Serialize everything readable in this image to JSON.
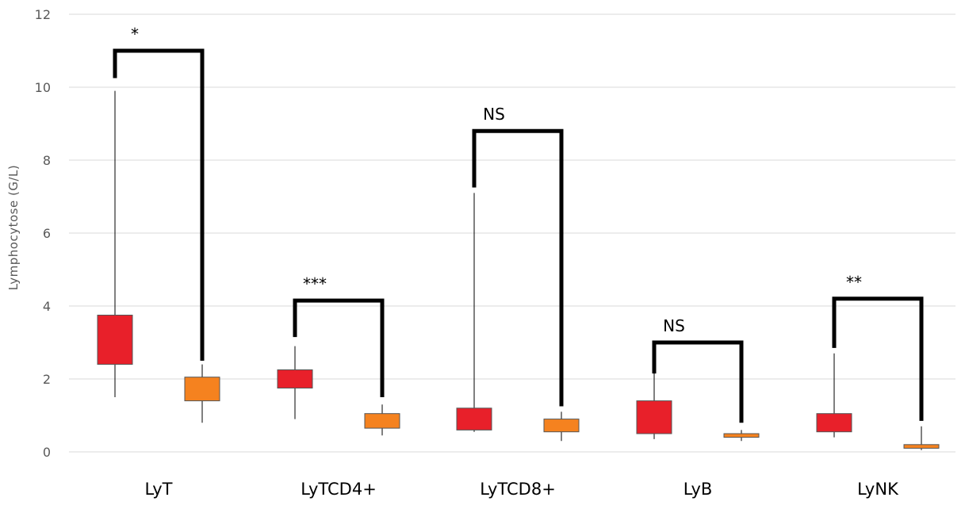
{
  "chart_data": {
    "type": "box",
    "ylabel": "Lymphocytose (G/L)",
    "xlabel": "",
    "ylim": [
      0,
      12
    ],
    "yticks": [
      0,
      2,
      4,
      6,
      8,
      10,
      12
    ],
    "grid": true,
    "colors": {
      "series_a": "#e8202a",
      "series_b": "#f5821f",
      "grid": "#d9d9d9",
      "bracket": "#000000"
    },
    "categories": [
      "LyT",
      "LyTCD4+",
      "LyTCD8+",
      "LyB",
      "LyNK"
    ],
    "series": [
      {
        "color": "#e8202a",
        "boxes": [
          {
            "min": 1.5,
            "q1": 2.4,
            "q3": 3.75,
            "max": 9.9
          },
          {
            "min": 0.9,
            "q1": 1.75,
            "q3": 2.25,
            "max": 2.9
          },
          {
            "min": 0.55,
            "q1": 0.6,
            "q3": 1.2,
            "max": 7.1
          },
          {
            "min": 0.35,
            "q1": 0.5,
            "q3": 1.4,
            "max": 2.25
          },
          {
            "min": 0.4,
            "q1": 0.55,
            "q3": 1.05,
            "max": 2.7
          }
        ]
      },
      {
        "color": "#f5821f",
        "boxes": [
          {
            "min": 0.8,
            "q1": 1.4,
            "q3": 2.05,
            "max": 2.4
          },
          {
            "min": 0.45,
            "q1": 0.65,
            "q3": 1.05,
            "max": 1.3
          },
          {
            "min": 0.3,
            "q1": 0.55,
            "q3": 0.9,
            "max": 1.1
          },
          {
            "min": 0.3,
            "q1": 0.4,
            "q3": 0.5,
            "max": 0.6
          },
          {
            "min": 0.05,
            "q1": 0.1,
            "q3": 0.2,
            "max": 0.7
          }
        ]
      }
    ],
    "comparisons": [
      {
        "category": "LyT",
        "label": "*",
        "top": 11.0,
        "left_end": 10.25,
        "right_end": 2.5
      },
      {
        "category": "LyTCD4+",
        "label": "***",
        "top": 4.15,
        "left_end": 3.15,
        "right_end": 1.5
      },
      {
        "category": "LyTCD8+",
        "label": "NS",
        "top": 8.8,
        "left_end": 7.25,
        "right_end": 1.25
      },
      {
        "category": "LyB",
        "label": "NS",
        "top": 3.0,
        "left_end": 2.15,
        "right_end": 0.8
      },
      {
        "category": "LyNK",
        "label": "**",
        "top": 4.2,
        "left_end": 2.85,
        "right_end": 0.85
      }
    ]
  }
}
